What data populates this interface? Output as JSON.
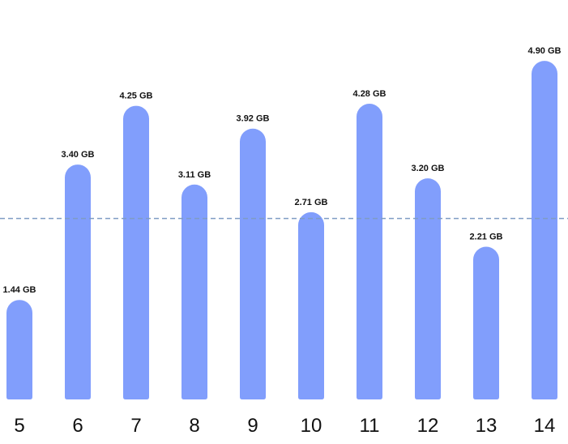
{
  "chart_data": {
    "type": "bar",
    "categories": [
      "5",
      "6",
      "7",
      "8",
      "9",
      "10",
      "11",
      "12",
      "13",
      "14"
    ],
    "values": [
      1.44,
      3.4,
      4.25,
      3.11,
      3.92,
      2.71,
      4.28,
      3.2,
      2.21,
      4.9
    ],
    "value_labels": [
      "1.44 GB",
      "3.40 GB",
      "4.25 GB",
      "3.11 GB",
      "3.92 GB",
      "2.71 GB",
      "4.28 GB",
      "3.20 GB",
      "2.21 GB",
      "4.90 GB"
    ],
    "color": "#819efc",
    "reference_line": 2.62,
    "reference_color": "#7f9cc4",
    "ylim": [
      0,
      5.5
    ]
  }
}
